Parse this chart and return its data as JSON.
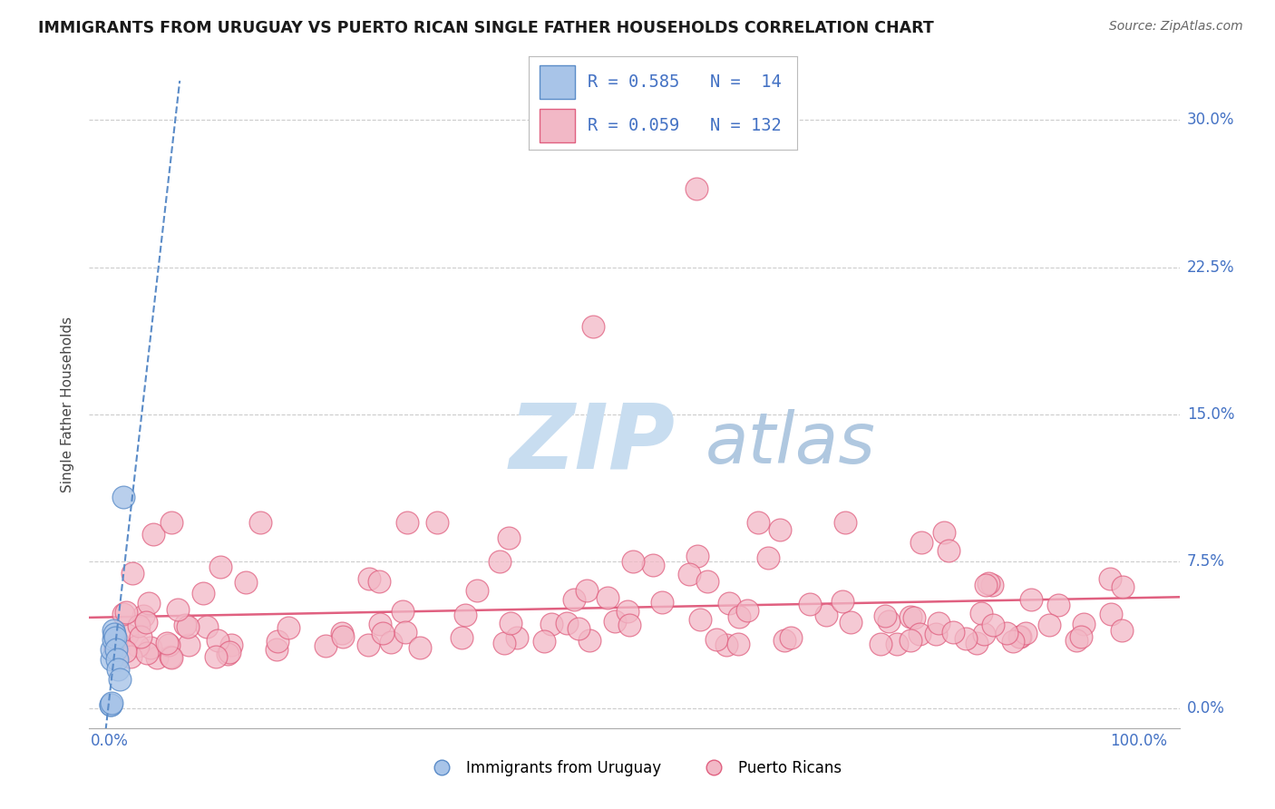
{
  "title": "IMMIGRANTS FROM URUGUAY VS PUERTO RICAN SINGLE FATHER HOUSEHOLDS CORRELATION CHART",
  "source": "Source: ZipAtlas.com",
  "ylabel": "Single Father Households",
  "watermark_zip": "ZIP",
  "watermark_atlas": "atlas",
  "x_ticks": [
    0.0,
    0.25,
    0.5,
    0.75,
    1.0
  ],
  "x_tick_labels": [
    "0.0%",
    "",
    "",
    "",
    "100.0%"
  ],
  "y_ticks": [
    0.0,
    0.075,
    0.15,
    0.225,
    0.3
  ],
  "y_tick_labels": [
    "0.0%",
    "7.5%",
    "15.0%",
    "22.5%",
    "30.0%"
  ],
  "ylim": [
    -0.01,
    0.32
  ],
  "xlim": [
    -0.02,
    1.04
  ],
  "legend1_label": "Immigrants from Uruguay",
  "legend2_label": "Puerto Ricans",
  "R1": 0.585,
  "N1": 14,
  "R2": 0.059,
  "N2": 132,
  "color_uruguay_fill": "#a8c4e8",
  "color_uruguay_edge": "#5b8cc8",
  "color_pr_fill": "#f2b8c6",
  "color_pr_edge": "#e06080",
  "color_text_blue": "#4472c4",
  "color_title": "#1a1a1a",
  "color_source": "#666666",
  "background_color": "#ffffff",
  "grid_color": "#cccccc",
  "watermark_color_zip": "#c8ddf0",
  "watermark_color_atlas": "#b0c8e0",
  "uruguay_trend_color": "#5b8cc8",
  "pr_trend_color": "#e06080"
}
